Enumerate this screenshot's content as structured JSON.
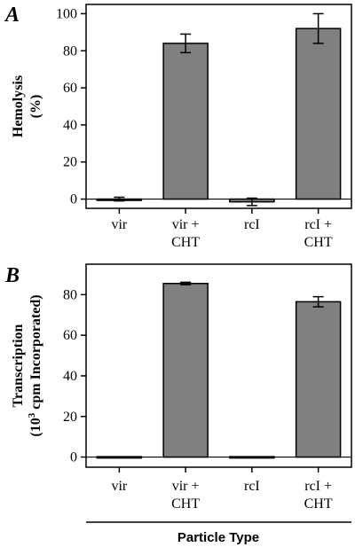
{
  "chart_data": [
    {
      "type": "bar",
      "panel_letter": "A",
      "categories": [
        [
          "vir"
        ],
        [
          "vir +",
          "CHT"
        ],
        [
          "rcI"
        ],
        [
          "rcI +",
          "CHT"
        ]
      ],
      "values": [
        0,
        84,
        -1.5,
        92
      ],
      "errors": [
        1,
        5,
        2,
        8
      ],
      "ylabel": [
        "Hemolysis",
        "(%)"
      ],
      "ylim": [
        -5,
        105
      ],
      "yticks": [
        0,
        20,
        40,
        60,
        80,
        100
      ],
      "bar_color": "#808080",
      "grid": false
    },
    {
      "type": "bar",
      "panel_letter": "B",
      "categories": [
        [
          "vir"
        ],
        [
          "vir +",
          "CHT"
        ],
        [
          "rcI"
        ],
        [
          "rcI +",
          "CHT"
        ]
      ],
      "values": [
        0.2,
        85.5,
        0.2,
        76.5
      ],
      "errors": [
        0,
        0.6,
        0,
        2.5
      ],
      "ylabel": [
        "Transcription",
        "(10 cpm Incorporated)"
      ],
      "ylabel_superscript": "3",
      "ylim": [
        -5,
        95
      ],
      "yticks": [
        0,
        20,
        40,
        60,
        80
      ],
      "bar_color": "#808080",
      "grid": false
    }
  ],
  "xaxis_title": "Particle Type"
}
